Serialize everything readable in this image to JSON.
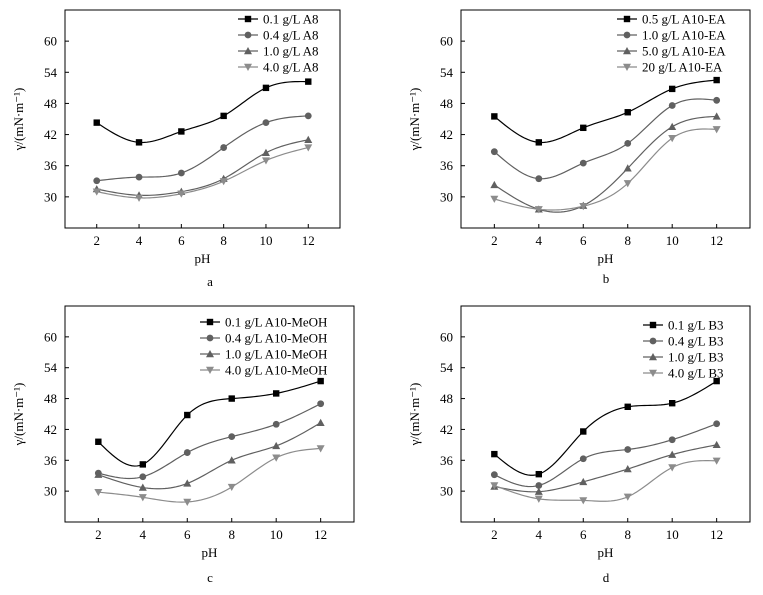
{
  "chart_data": [
    {
      "type": "scatter",
      "panel_label": "a",
      "xlabel": "pH",
      "ylabel": "γ/(mN·m⁻¹)",
      "xlim": [
        0.5,
        13.5
      ],
      "ylim": [
        24,
        66
      ],
      "xticks": [
        2,
        4,
        6,
        8,
        10,
        12
      ],
      "yticks": [
        30,
        36,
        42,
        48,
        54,
        60
      ],
      "legend_position": "top-right",
      "x": [
        2,
        4,
        6,
        8,
        10,
        12
      ],
      "series": [
        {
          "name": "0.1 g/L A8",
          "marker": "square",
          "color": "#000000",
          "values": [
            44.3,
            40.5,
            42.6,
            45.6,
            51.0,
            52.2
          ]
        },
        {
          "name": "0.4 g/L A8",
          "marker": "circle",
          "color": "#606060",
          "values": [
            33.1,
            33.8,
            34.6,
            39.5,
            44.3,
            45.6
          ]
        },
        {
          "name": "1.0 g/L A8",
          "marker": "triangle-up",
          "color": "#606060",
          "values": [
            31.5,
            30.3,
            31.0,
            33.5,
            38.5,
            41.0
          ]
        },
        {
          "name": "4.0 g/L A8",
          "marker": "triangle-down",
          "color": "#8c8c8c",
          "values": [
            31.0,
            29.8,
            30.6,
            33.0,
            37.0,
            39.5
          ]
        }
      ]
    },
    {
      "type": "scatter",
      "panel_label": "b",
      "xlabel": "pH",
      "ylabel": "γ/(mN·m⁻¹)",
      "xlim": [
        0.5,
        13.5
      ],
      "ylim": [
        24,
        66
      ],
      "xticks": [
        2,
        4,
        6,
        8,
        10,
        12
      ],
      "yticks": [
        30,
        36,
        42,
        48,
        54,
        60
      ],
      "legend_position": "top-right",
      "x": [
        2,
        4,
        6,
        8,
        10,
        12
      ],
      "series": [
        {
          "name": "0.5 g/L A10-EA",
          "marker": "square",
          "color": "#000000",
          "values": [
            45.5,
            40.5,
            43.3,
            46.3,
            50.8,
            52.5
          ]
        },
        {
          "name": "1.0 g/L A10-EA",
          "marker": "circle",
          "color": "#606060",
          "values": [
            38.7,
            33.5,
            36.5,
            40.3,
            47.6,
            48.6
          ]
        },
        {
          "name": "5.0 g/L A10-EA",
          "marker": "triangle-up",
          "color": "#606060",
          "values": [
            32.3,
            27.6,
            28.3,
            35.5,
            43.5,
            45.5
          ]
        },
        {
          "name": "20 g/L A10-EA",
          "marker": "triangle-down",
          "color": "#8c8c8c",
          "values": [
            29.6,
            27.6,
            28.2,
            32.6,
            41.3,
            43.0
          ]
        }
      ]
    },
    {
      "type": "scatter",
      "panel_label": "c",
      "xlabel": "pH",
      "ylabel": "γ/(mN·m⁻¹)",
      "xlim": [
        0.5,
        13.5
      ],
      "ylim": [
        24,
        66
      ],
      "xticks": [
        2,
        4,
        6,
        8,
        10,
        12
      ],
      "yticks": [
        30,
        36,
        42,
        48,
        54,
        60
      ],
      "legend_position": "top-right",
      "x": [
        2,
        4,
        6,
        8,
        10,
        12
      ],
      "series": [
        {
          "name": "0.1 g/L A10-MeOH",
          "marker": "square",
          "color": "#000000",
          "values": [
            39.6,
            35.2,
            44.8,
            48.0,
            49.0,
            51.4
          ]
        },
        {
          "name": "0.4 g/L A10-MeOH",
          "marker": "circle",
          "color": "#606060",
          "values": [
            33.5,
            32.8,
            37.5,
            40.6,
            43.0,
            47.0
          ]
        },
        {
          "name": "1.0 g/L A10-MeOH",
          "marker": "triangle-up",
          "color": "#606060",
          "values": [
            33.2,
            30.7,
            31.5,
            36.0,
            38.8,
            43.3
          ]
        },
        {
          "name": "4.0 g/L A10-MeOH",
          "marker": "triangle-down",
          "color": "#8c8c8c",
          "values": [
            29.8,
            28.8,
            27.9,
            30.8,
            36.5,
            38.3
          ]
        }
      ]
    },
    {
      "type": "scatter",
      "panel_label": "d",
      "xlabel": "pH",
      "ylabel": "γ/(mN·m⁻¹)",
      "xlim": [
        0.5,
        13.5
      ],
      "ylim": [
        24,
        66
      ],
      "xticks": [
        2,
        4,
        6,
        8,
        10,
        12
      ],
      "yticks": [
        30,
        36,
        42,
        48,
        54,
        60
      ],
      "legend_position": "top-right",
      "x": [
        2,
        4,
        6,
        8,
        10,
        12
      ],
      "series": [
        {
          "name": "0.1 g/L B3",
          "marker": "square",
          "color": "#000000",
          "values": [
            37.2,
            33.3,
            41.6,
            46.4,
            47.1,
            51.4
          ]
        },
        {
          "name": "0.4 g/L B3",
          "marker": "circle",
          "color": "#606060",
          "values": [
            33.2,
            31.1,
            36.3,
            38.1,
            40.0,
            43.1
          ]
        },
        {
          "name": "1.0 g/L B3",
          "marker": "triangle-up",
          "color": "#606060",
          "values": [
            30.9,
            29.9,
            31.8,
            34.3,
            37.1,
            39.0
          ]
        },
        {
          "name": "4.0 g/L B3",
          "marker": "triangle-down",
          "color": "#8c8c8c",
          "values": [
            31.1,
            28.5,
            28.2,
            28.9,
            34.6,
            35.9
          ]
        }
      ]
    }
  ]
}
